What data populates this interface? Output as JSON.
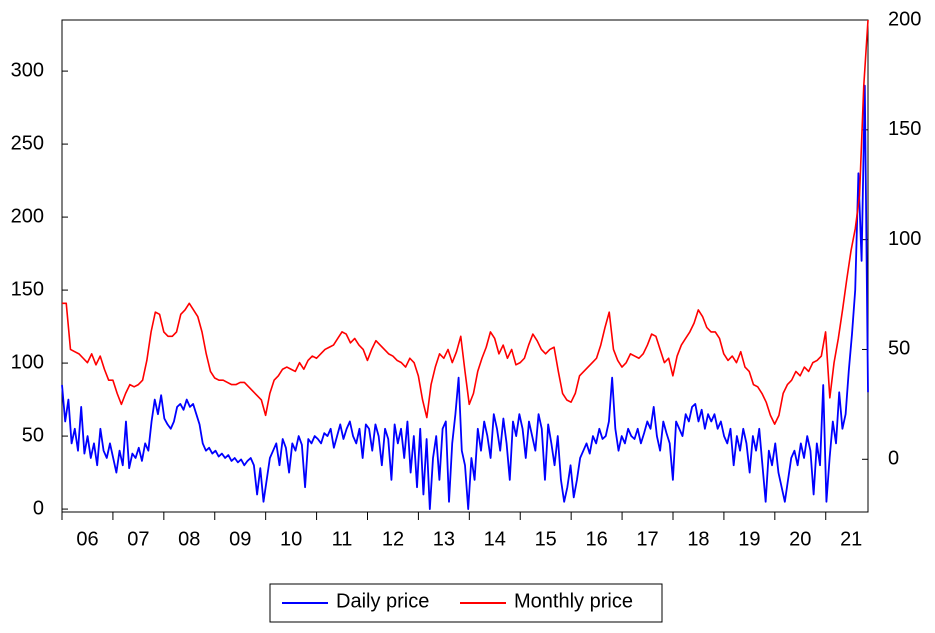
{
  "chart_data": {
    "type": "line",
    "xlim": [
      2006,
      2021.83
    ],
    "xticks": [
      {
        "value": 2006,
        "label": "06"
      },
      {
        "value": 2007,
        "label": "07"
      },
      {
        "value": 2008,
        "label": "08"
      },
      {
        "value": 2009,
        "label": "09"
      },
      {
        "value": 2010,
        "label": "10"
      },
      {
        "value": 2011,
        "label": "11"
      },
      {
        "value": 2012,
        "label": "12"
      },
      {
        "value": 2013,
        "label": "13"
      },
      {
        "value": 2014,
        "label": "14"
      },
      {
        "value": 2015,
        "label": "15"
      },
      {
        "value": 2016,
        "label": "16"
      },
      {
        "value": 2017,
        "label": "17"
      },
      {
        "value": 2018,
        "label": "18"
      },
      {
        "value": 2019,
        "label": "19"
      },
      {
        "value": 2020,
        "label": "20"
      },
      {
        "value": 2021,
        "label": "21"
      }
    ],
    "ylim": [
      -2,
      335
    ],
    "yticks": [
      0,
      50,
      100,
      150,
      200,
      250,
      300
    ],
    "y2lim": [
      -24,
      200
    ],
    "y2ticks": [
      0,
      50,
      100,
      150,
      200
    ],
    "legend": "bottom",
    "series": [
      {
        "name": "Daily price",
        "color": "#0000ff",
        "axis": "y",
        "values": [
          85,
          60,
          75,
          45,
          55,
          40,
          70,
          38,
          50,
          35,
          45,
          30,
          55,
          40,
          35,
          45,
          35,
          25,
          40,
          30,
          60,
          28,
          38,
          35,
          42,
          33,
          45,
          40,
          60,
          75,
          65,
          78,
          62,
          58,
          55,
          60,
          70,
          72,
          68,
          75,
          70,
          72,
          65,
          58,
          45,
          40,
          42,
          38,
          40,
          36,
          38,
          35,
          37,
          33,
          35,
          32,
          34,
          30,
          33,
          35,
          30,
          10,
          28,
          5,
          20,
          35,
          40,
          45,
          30,
          48,
          42,
          25,
          45,
          40,
          50,
          44,
          15,
          48,
          45,
          50,
          48,
          45,
          52,
          50,
          55,
          42,
          50,
          58,
          48,
          55,
          60,
          50,
          45,
          55,
          35,
          58,
          55,
          40,
          58,
          50,
          30,
          55,
          48,
          20,
          58,
          45,
          55,
          35,
          60,
          25,
          50,
          15,
          55,
          10,
          48,
          0,
          35,
          50,
          20,
          55,
          60,
          5,
          45,
          65,
          90,
          40,
          30,
          0,
          35,
          20,
          55,
          40,
          60,
          50,
          35,
          65,
          55,
          40,
          62,
          45,
          20,
          60,
          50,
          65,
          55,
          35,
          60,
          50,
          40,
          65,
          55,
          20,
          58,
          45,
          30,
          50,
          20,
          5,
          15,
          30,
          8,
          20,
          35,
          40,
          45,
          38,
          50,
          45,
          55,
          48,
          50,
          60,
          90,
          55,
          40,
          50,
          45,
          55,
          50,
          48,
          55,
          45,
          52,
          60,
          55,
          70,
          50,
          40,
          60,
          52,
          45,
          20,
          60,
          55,
          50,
          65,
          60,
          70,
          72,
          60,
          68,
          55,
          65,
          60,
          65,
          55,
          60,
          50,
          45,
          55,
          30,
          50,
          40,
          55,
          45,
          25,
          50,
          40,
          55,
          30,
          5,
          40,
          30,
          45,
          25,
          15,
          5,
          20,
          35,
          40,
          30,
          45,
          35,
          50,
          40,
          10,
          45,
          30,
          85,
          5,
          35,
          60,
          45,
          80,
          55,
          65,
          95,
          120,
          150,
          230,
          170,
          290,
          80
        ]
      },
      {
        "name": "Monthly price",
        "color": "#ff0000",
        "axis": "y2",
        "values": [
          71,
          71,
          50,
          49,
          48,
          46,
          44,
          48,
          43,
          47,
          41,
          36,
          36,
          30,
          25,
          30,
          34,
          33,
          34,
          36,
          45,
          58,
          67,
          66,
          58,
          56,
          56,
          58,
          66,
          68,
          71,
          68,
          65,
          58,
          48,
          40,
          37,
          36,
          36,
          35,
          34,
          34,
          35,
          35,
          33,
          31,
          29,
          27,
          20,
          30,
          36,
          38,
          41,
          42,
          41,
          40,
          44,
          41,
          45,
          47,
          46,
          48,
          50,
          51,
          52,
          55,
          58,
          57,
          53,
          55,
          52,
          50,
          45,
          50,
          54,
          52,
          50,
          48,
          47,
          45,
          44,
          42,
          46,
          44,
          38,
          27,
          19,
          34,
          42,
          48,
          46,
          50,
          44,
          49,
          56,
          40,
          25,
          30,
          40,
          46,
          51,
          58,
          55,
          48,
          52,
          46,
          50,
          43,
          44,
          46,
          52,
          57,
          54,
          50,
          48,
          50,
          51,
          40,
          30,
          27,
          26,
          30,
          38,
          40,
          42,
          44,
          46,
          52,
          60,
          67,
          50,
          45,
          42,
          44,
          48,
          47,
          46,
          48,
          52,
          57,
          56,
          50,
          44,
          46,
          38,
          47,
          52,
          55,
          58,
          62,
          68,
          65,
          60,
          58,
          58,
          55,
          48,
          45,
          47,
          44,
          49,
          42,
          40,
          34,
          33,
          30,
          26,
          20,
          16,
          20,
          30,
          34,
          36,
          40,
          38,
          42,
          40,
          44,
          45,
          47,
          58,
          28,
          44,
          55,
          68,
          82,
          95,
          105,
          120,
          170,
          200
        ]
      }
    ]
  }
}
